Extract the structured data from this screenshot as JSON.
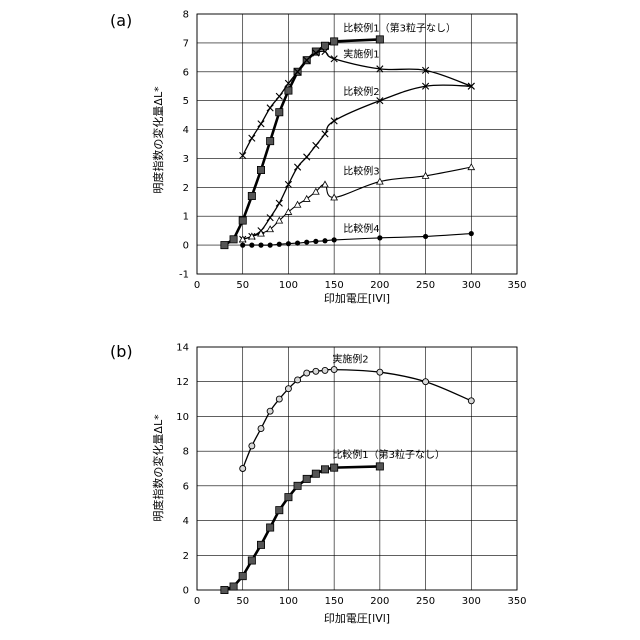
{
  "chart_data": [
    {
      "type": "line",
      "panel": "(a)",
      "xlabel": "印加電圧[lVl]",
      "ylabel": "明度指数の変化量ΔL*",
      "xlim": [
        0,
        350
      ],
      "ylim": [
        -1,
        8
      ],
      "xticks": [
        0,
        50,
        100,
        150,
        200,
        250,
        300,
        350
      ],
      "yticks": [
        -1,
        0,
        1,
        2,
        3,
        4,
        5,
        6,
        7,
        8
      ],
      "grid": true,
      "series": [
        {
          "name": "比較例1（第3粒子なし）",
          "marker": "square",
          "stroke": "#000000",
          "width": 2.6,
          "x": [
            30,
            40,
            50,
            60,
            70,
            80,
            90,
            100,
            110,
            120,
            130,
            140,
            150,
            200
          ],
          "y": [
            0.0,
            0.2,
            0.85,
            1.7,
            2.6,
            3.6,
            4.6,
            5.35,
            6.0,
            6.4,
            6.7,
            6.9,
            7.05,
            7.12
          ]
        },
        {
          "name": "実施例1",
          "marker": "x",
          "stroke": "#000000",
          "width": 1.3,
          "x": [
            50,
            60,
            70,
            80,
            90,
            100,
            110,
            120,
            130,
            140,
            150,
            200,
            250,
            300
          ],
          "y": [
            3.1,
            3.7,
            4.2,
            4.75,
            5.15,
            5.6,
            6.0,
            6.4,
            6.65,
            6.7,
            6.45,
            6.1,
            6.05,
            5.5
          ]
        },
        {
          "name": "比較例2",
          "marker": "plus",
          "stroke": "#000000",
          "width": 1.3,
          "x": [
            50,
            60,
            70,
            80,
            90,
            100,
            110,
            120,
            130,
            140,
            150,
            200,
            250,
            300
          ],
          "y": [
            0.2,
            0.3,
            0.5,
            0.95,
            1.45,
            2.1,
            2.7,
            3.05,
            3.45,
            3.85,
            4.3,
            5.0,
            5.5,
            5.5
          ]
        },
        {
          "name": "比較例3",
          "marker": "triangle",
          "stroke": "#000000",
          "width": 1.1,
          "x": [
            50,
            60,
            70,
            80,
            90,
            100,
            110,
            120,
            130,
            140,
            150,
            200,
            250,
            300
          ],
          "y": [
            0.2,
            0.3,
            0.4,
            0.55,
            0.85,
            1.15,
            1.4,
            1.6,
            1.85,
            2.1,
            1.65,
            2.2,
            2.4,
            2.7
          ]
        },
        {
          "name": "比較例4",
          "marker": "circle",
          "stroke": "#000000",
          "width": 1.1,
          "x": [
            50,
            60,
            70,
            80,
            90,
            100,
            110,
            120,
            130,
            140,
            150,
            200,
            250,
            300
          ],
          "y": [
            0.0,
            0.0,
            0.0,
            0.0,
            0.03,
            0.05,
            0.07,
            0.1,
            0.13,
            0.15,
            0.18,
            0.25,
            0.3,
            0.4
          ]
        }
      ],
      "labels": [
        {
          "text": "比較例1（第3粒子なし）",
          "x": 160,
          "y": 7.4
        },
        {
          "text": "実施例1",
          "x": 160,
          "y": 6.5
        },
        {
          "text": "比較例2",
          "x": 160,
          "y": 5.2
        },
        {
          "text": "比較例3",
          "x": 160,
          "y": 2.45
        },
        {
          "text": "比較例4",
          "x": 160,
          "y": 0.45
        }
      ]
    },
    {
      "type": "line",
      "panel": "(b)",
      "xlabel": "印加電圧[lVl]",
      "ylabel": "明度指数の変化量ΔL*",
      "xlim": [
        0,
        350
      ],
      "ylim": [
        0,
        14
      ],
      "xticks": [
        0,
        50,
        100,
        150,
        200,
        250,
        300,
        350
      ],
      "yticks": [
        0,
        2,
        4,
        6,
        8,
        10,
        12,
        14
      ],
      "grid": true,
      "series": [
        {
          "name": "実施例2",
          "marker": "circle-open",
          "stroke": "#000000",
          "width": 1.3,
          "x": [
            50,
            60,
            70,
            80,
            90,
            100,
            110,
            120,
            130,
            140,
            150,
            200,
            250,
            300
          ],
          "y": [
            7.0,
            8.3,
            9.3,
            10.3,
            11.0,
            11.6,
            12.1,
            12.5,
            12.6,
            12.65,
            12.7,
            12.55,
            12.0,
            10.9
          ]
        },
        {
          "name": "比較例1（第3粒子なし）",
          "marker": "square",
          "stroke": "#000000",
          "width": 2.6,
          "x": [
            30,
            40,
            50,
            60,
            70,
            80,
            90,
            100,
            110,
            120,
            130,
            140,
            150,
            200
          ],
          "y": [
            0.0,
            0.2,
            0.8,
            1.7,
            2.6,
            3.6,
            4.6,
            5.35,
            6.0,
            6.4,
            6.7,
            6.95,
            7.05,
            7.12
          ]
        }
      ],
      "labels": [
        {
          "text": "実施例2",
          "x": 148,
          "y": 13.1
        },
        {
          "text": "比較例1（第3粒子なし）",
          "x": 148,
          "y": 7.6
        }
      ]
    }
  ],
  "panels": [
    {
      "tag": "(a)"
    },
    {
      "tag": "(b)"
    }
  ]
}
